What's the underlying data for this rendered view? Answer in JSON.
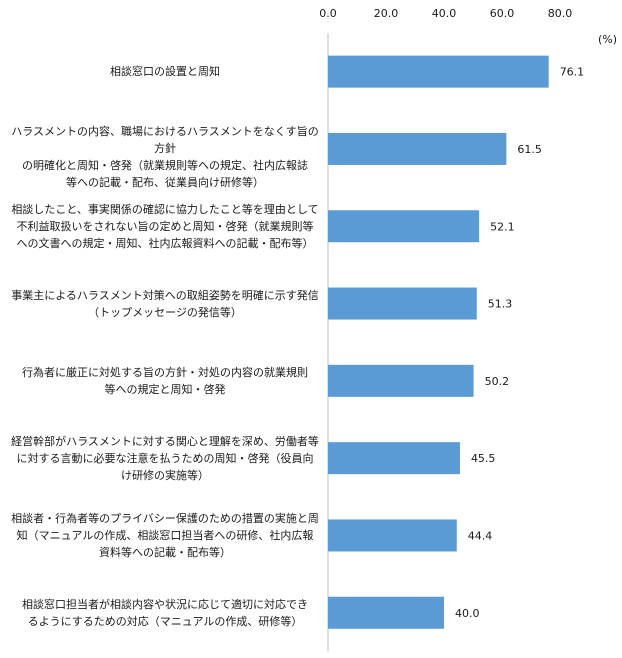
{
  "chart_data": {
    "type": "bar",
    "orientation": "horizontal",
    "unit_label": "(%)",
    "title": "",
    "xlabel": "",
    "ylabel": "",
    "xlim": [
      0,
      80
    ],
    "ticks": [
      "0.0",
      "20.0",
      "40.0",
      "60.0",
      "80.0"
    ],
    "tick_values": [
      0,
      20,
      40,
      60,
      80
    ],
    "bar_color": "#5b9bd5",
    "grid": false,
    "categories": [
      "相談窓口の設置と周知",
      "ハラスメントの内容、職場におけるハラスメントをなくす旨の方針の明確化と周知・啓発（就業規則等への規定、社内広報誌等への記載・配布、従業員向け研修等）",
      "相談したこと、事実関係の確認に協力したこと等を理由として不利益取扱いをされない旨の定めと周知・啓発（就業規則等への文書への規定・周知、社内広報資料への記載・配布等）",
      "事業主によるハラスメント対策への取組姿勢を明確に示す発信（トップメッセージの発信等）",
      "行為者に厳正に対処する旨の方針・対処の内容の就業規則等への規定と周知・啓発",
      "経営幹部がハラスメントに対する関心と理解を深め、労働者等に対する言動に必要な注意を払うための周知・啓発（役員向け研修の実施等）",
      "相談者・行為者等のプライバシー保護のための措置の実施と周知（マニュアルの作成、相談窓口担当者への研修、社内広報資料等への記載・配布等）",
      "相談窓口担当者が相談内容や状況に応じて適切に対応できるようにするための対応（マニュアルの作成、研修等）"
    ],
    "category_lines": [
      [
        "相談窓口の設置と周知"
      ],
      [
        "ハラスメントの内容、職場におけるハラスメントをなくす旨の方針",
        "の明確化と周知・啓発（就業規則等への規定、社内広報誌",
        "等への記載・配布、従業員向け研修等）"
      ],
      [
        "相談したこと、事実関係の確認に協力したこと等を理由として",
        "不利益取扱いをされない旨の定めと周知・啓発（就業規則等",
        "への文書への規定・周知、社内広報資料への記載・配布等）"
      ],
      [
        "事業主によるハラスメント対策への取組姿勢を明確に示す発信",
        "（トップメッセージの発信等）"
      ],
      [
        "行為者に厳正に対処する旨の方針・対処の内容の就業規則",
        "等への規定と周知・啓発"
      ],
      [
        "経営幹部がハラスメントに対する関心と理解を深め、労働者等",
        "に対する言動に必要な注意を払うための周知・啓発（役員向",
        "け研修の実施等）"
      ],
      [
        "相談者・行為者等のプライバシー保護のための措置の実施と周",
        "知（マニュアルの作成、相談窓口担当者への研修、社内広報",
        "資料等への記載・配布等）"
      ],
      [
        "相談窓口担当者が相談内容や状況に応じて適切に対応でき",
        "るようにするための対応（マニュアルの作成、研修等）"
      ]
    ],
    "values": [
      76.1,
      61.5,
      52.1,
      51.3,
      50.2,
      45.5,
      44.4,
      40.0
    ],
    "value_labels": [
      "76.1",
      "61.5",
      "52.1",
      "51.3",
      "50.2",
      "45.5",
      "44.4",
      "40.0"
    ]
  }
}
